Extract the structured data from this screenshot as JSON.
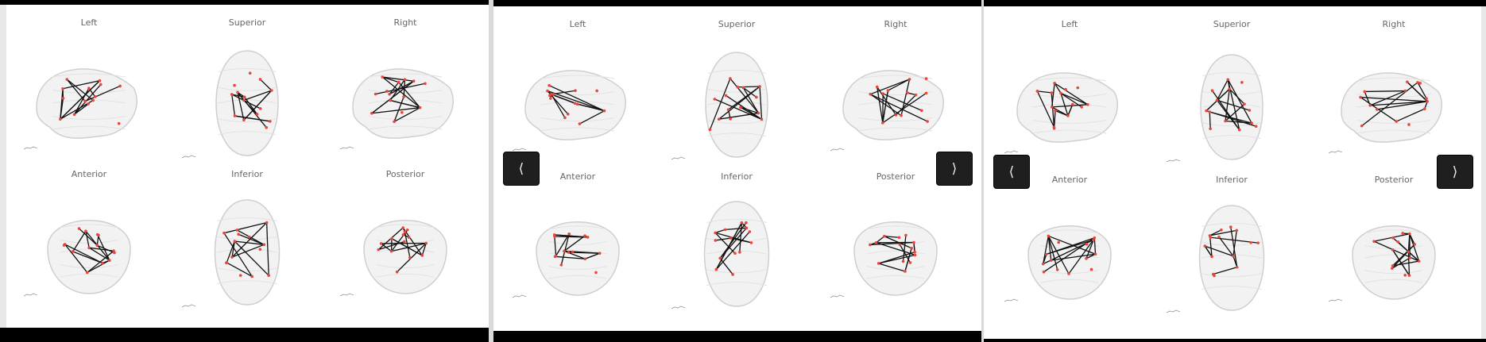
{
  "views": [
    "Left",
    "Superior",
    "Right",
    "Anterior",
    "Inferior",
    "Posterior"
  ],
  "nav": {
    "prev_symbol": "⟨",
    "next_symbol": "⟩"
  },
  "colors": {
    "node": "#e8453c",
    "edge": "#111111",
    "brain_outline": "#cfcfcf",
    "bar": "#000000"
  }
}
